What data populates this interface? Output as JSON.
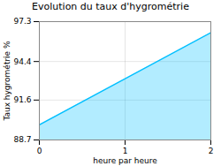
{
  "chart_data": {
    "type": "area",
    "title": "Evolution du taux d'hygrométrie",
    "xlabel": "heure par heure",
    "ylabel": "Taux hygrométrie %",
    "x": [
      0,
      2
    ],
    "values": [
      89.8,
      96.5
    ],
    "color": "#00bfff",
    "xlim": [
      0,
      2
    ],
    "xticks": [
      0,
      1,
      2
    ],
    "ylim": [
      88.7,
      97.3
    ],
    "yticks": [
      88.7,
      91.6,
      94.4,
      97.3
    ],
    "grid": true
  }
}
